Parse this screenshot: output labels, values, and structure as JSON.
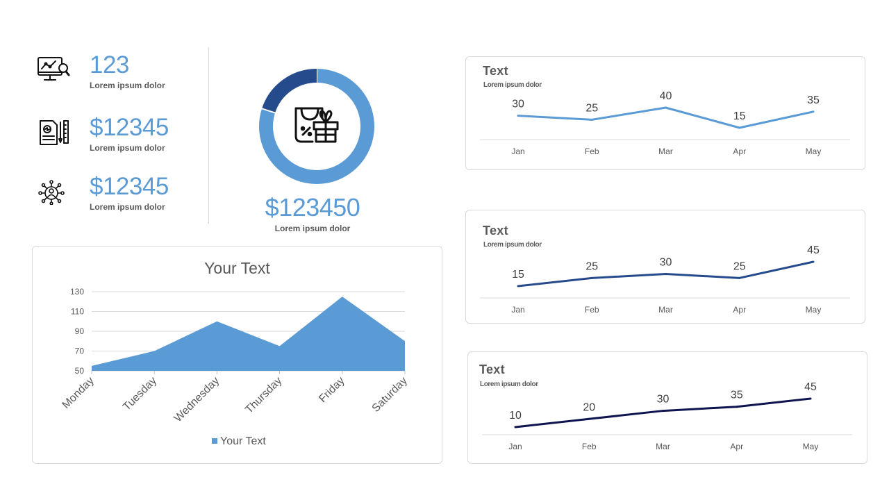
{
  "kpis": [
    {
      "icon": "monitor-analytics-icon",
      "value": "123",
      "label": "Lorem ipsum dolor"
    },
    {
      "icon": "document-ruler-icon",
      "value": "$12345",
      "label": "Lorem ipsum dolor"
    },
    {
      "icon": "network-user-icon",
      "value": "$12345",
      "label": "Lorem ipsum dolor"
    }
  ],
  "donut": {
    "value": "$123450",
    "label": "Lorem ipsum dolor",
    "icon": "shopping-bag-gift-icon",
    "segments": [
      {
        "fraction": 0.8,
        "color": "#5b9bd5"
      },
      {
        "fraction": 0.2,
        "color": "#264b8c"
      }
    ]
  },
  "chart_data": [
    {
      "type": "area",
      "title": "Your Text",
      "categories": [
        "Monday",
        "Tuesday",
        "Wednesday",
        "Thursday",
        "Friday",
        "Saturday"
      ],
      "series": [
        {
          "name": "Your Text",
          "values": [
            55,
            70,
            100,
            75,
            125,
            80
          ],
          "color": "#5b9bd5"
        }
      ],
      "ylim": [
        50,
        130
      ],
      "yticks": [
        50,
        70,
        90,
        110,
        130
      ],
      "grid": true,
      "legend": "bottom"
    },
    {
      "type": "line",
      "title": "Text",
      "subtitle": "Lorem ipsum dolor",
      "categories": [
        "Jan",
        "Feb",
        "Mar",
        "Apr",
        "May"
      ],
      "series": [
        {
          "values": [
            30,
            25,
            40,
            15,
            35
          ],
          "color": "#5b9bd5"
        }
      ],
      "data_labels": true
    },
    {
      "type": "line",
      "title": "Text",
      "subtitle": "Lorem ipsum dolor",
      "categories": [
        "Jan",
        "Feb",
        "Mar",
        "Apr",
        "May"
      ],
      "series": [
        {
          "values": [
            15,
            25,
            30,
            25,
            45
          ],
          "color": "#264b8c"
        }
      ],
      "data_labels": true
    },
    {
      "type": "line",
      "title": "Text",
      "subtitle": "Lorem ipsum dolor",
      "categories": [
        "Jan",
        "Feb",
        "Mar",
        "Apr",
        "May"
      ],
      "series": [
        {
          "values": [
            10,
            20,
            30,
            35,
            45
          ],
          "color": "#0d1450"
        }
      ],
      "data_labels": true
    }
  ]
}
